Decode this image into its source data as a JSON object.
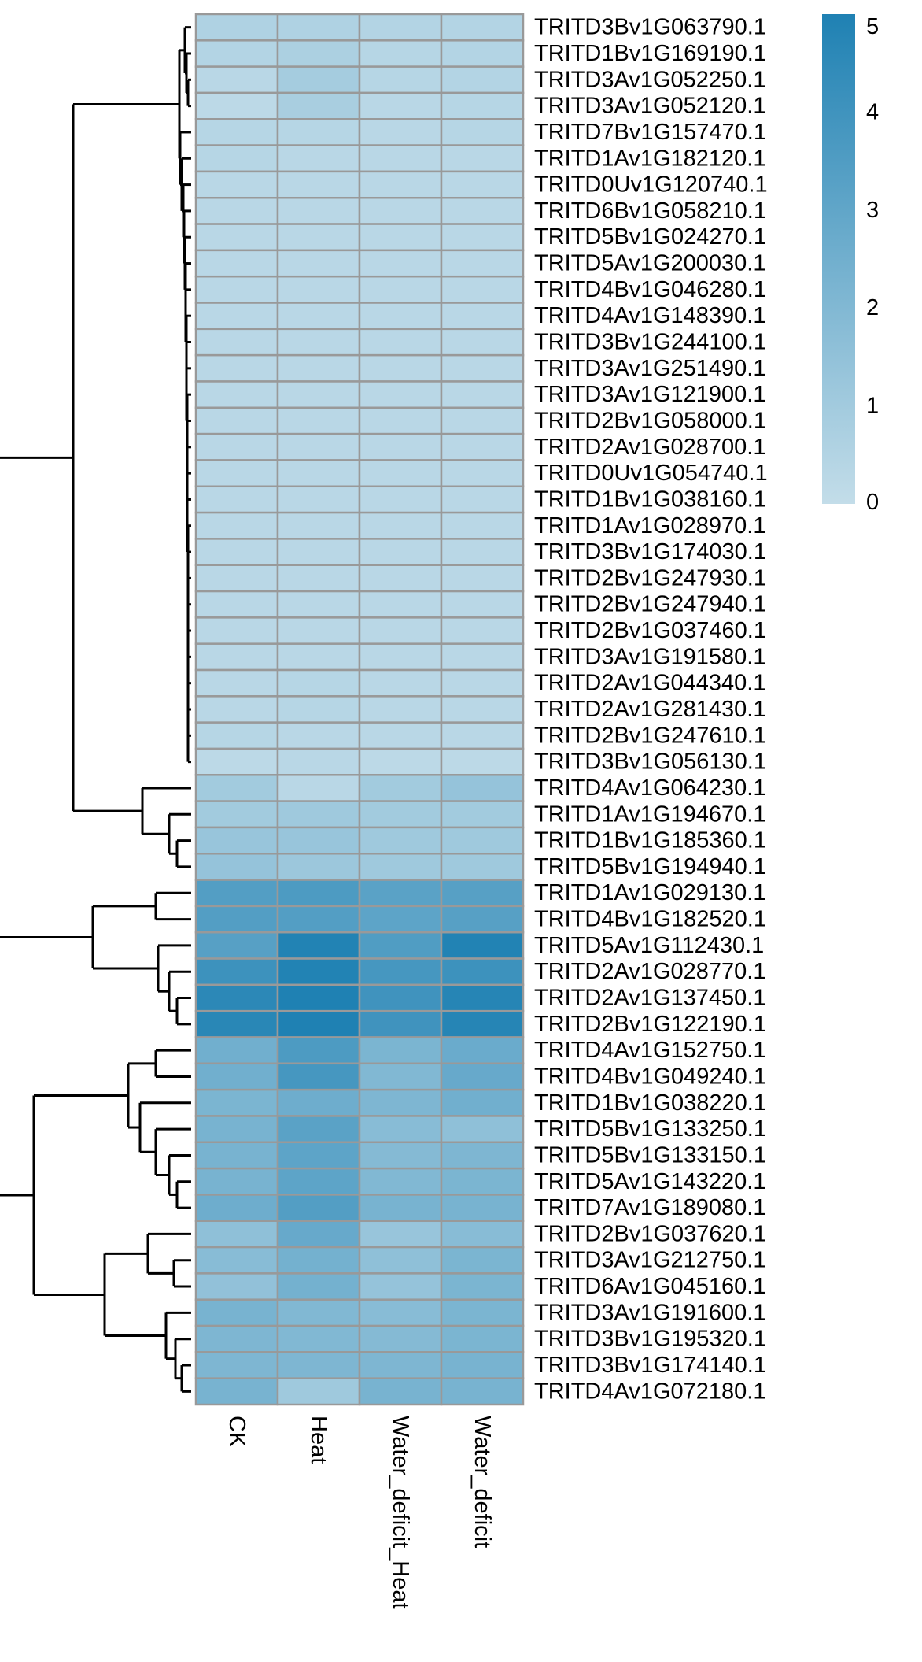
{
  "chart_data": {
    "type": "heatmap",
    "columns": [
      "CK",
      "Heat",
      "Water_deficit_Heat",
      "Water_deficit"
    ],
    "rows": [
      "TRITD3Bv1G063790.1",
      "TRITD1Bv1G169190.1",
      "TRITD3Av1G052250.1",
      "TRITD3Av1G052120.1",
      "TRITD7Bv1G157470.1",
      "TRITD1Av1G182120.1",
      "TRITD0Uv1G120740.1",
      "TRITD6Bv1G058210.1",
      "TRITD5Bv1G024270.1",
      "TRITD5Av1G200030.1",
      "TRITD4Bv1G046280.1",
      "TRITD4Av1G148390.1",
      "TRITD3Bv1G244100.1",
      "TRITD3Av1G251490.1",
      "TRITD3Av1G121900.1",
      "TRITD2Bv1G058000.1",
      "TRITD2Av1G028700.1",
      "TRITD0Uv1G054740.1",
      "TRITD1Bv1G038160.1",
      "TRITD1Av1G028970.1",
      "TRITD3Bv1G174030.1",
      "TRITD2Bv1G247930.1",
      "TRITD2Bv1G247940.1",
      "TRITD2Bv1G037460.1",
      "TRITD3Av1G191580.1",
      "TRITD2Av1G044340.1",
      "TRITD2Av1G281430.1",
      "TRITD2Bv1G247610.1",
      "TRITD3Bv1G056130.1",
      "TRITD4Av1G064230.1",
      "TRITD1Av1G194670.1",
      "TRITD1Bv1G185360.1",
      "TRITD5Bv1G194940.1",
      "TRITD1Av1G029130.1",
      "TRITD4Bv1G182520.1",
      "TRITD5Av1G112430.1",
      "TRITD2Av1G028770.1",
      "TRITD2Av1G137450.1",
      "TRITD2Bv1G122190.1",
      "TRITD4Av1G152750.1",
      "TRITD4Bv1G049240.1",
      "TRITD1Bv1G038220.1",
      "TRITD5Bv1G133250.1",
      "TRITD5Bv1G133150.1",
      "TRITD5Av1G143220.1",
      "TRITD7Av1G189080.1",
      "TRITD2Bv1G037620.1",
      "TRITD3Av1G212750.1",
      "TRITD6Av1G045160.1",
      "TRITD3Av1G191600.1",
      "TRITD3Bv1G195320.1",
      "TRITD3Bv1G174140.1",
      "TRITD4Av1G072180.1"
    ],
    "values": [
      [
        0.6,
        0.6,
        0.5,
        0.5
      ],
      [
        0.5,
        0.7,
        0.4,
        0.5
      ],
      [
        0.3,
        0.9,
        0.4,
        0.5
      ],
      [
        0.2,
        0.8,
        0.3,
        0.4
      ],
      [
        0.4,
        0.4,
        0.3,
        0.4
      ],
      [
        0.4,
        0.3,
        0.3,
        0.3
      ],
      [
        0.3,
        0.3,
        0.3,
        0.3
      ],
      [
        0.3,
        0.3,
        0.3,
        0.3
      ],
      [
        0.3,
        0.3,
        0.3,
        0.3
      ],
      [
        0.3,
        0.3,
        0.3,
        0.3
      ],
      [
        0.3,
        0.3,
        0.3,
        0.3
      ],
      [
        0.3,
        0.3,
        0.3,
        0.3
      ],
      [
        0.3,
        0.3,
        0.3,
        0.3
      ],
      [
        0.3,
        0.3,
        0.3,
        0.3
      ],
      [
        0.3,
        0.3,
        0.3,
        0.3
      ],
      [
        0.3,
        0.3,
        0.3,
        0.3
      ],
      [
        0.3,
        0.3,
        0.3,
        0.3
      ],
      [
        0.3,
        0.3,
        0.3,
        0.3
      ],
      [
        0.3,
        0.3,
        0.3,
        0.3
      ],
      [
        0.3,
        0.3,
        0.3,
        0.3
      ],
      [
        0.3,
        0.3,
        0.3,
        0.3
      ],
      [
        0.3,
        0.3,
        0.3,
        0.3
      ],
      [
        0.3,
        0.3,
        0.3,
        0.3
      ],
      [
        0.3,
        0.3,
        0.3,
        0.3
      ],
      [
        0.3,
        0.3,
        0.3,
        0.3
      ],
      [
        0.3,
        0.4,
        0.3,
        0.3
      ],
      [
        0.3,
        0.4,
        0.3,
        0.3
      ],
      [
        0.4,
        0.3,
        0.3,
        0.3
      ],
      [
        0.2,
        0.3,
        0.2,
        0.2
      ],
      [
        1.0,
        0.3,
        1.0,
        1.4
      ],
      [
        1.0,
        1.1,
        1.0,
        1.0
      ],
      [
        1.3,
        1.3,
        1.1,
        1.1
      ],
      [
        1.4,
        1.2,
        1.1,
        1.1
      ],
      [
        3.4,
        3.6,
        3.2,
        3.3
      ],
      [
        3.4,
        3.4,
        3.1,
        3.3
      ],
      [
        3.3,
        4.9,
        3.5,
        4.9
      ],
      [
        4.1,
        4.9,
        3.8,
        4.1
      ],
      [
        4.6,
        5.0,
        4.0,
        4.8
      ],
      [
        4.7,
        5.0,
        4.0,
        4.8
      ],
      [
        2.5,
        3.6,
        2.2,
        2.7
      ],
      [
        2.5,
        3.8,
        2.0,
        2.8
      ],
      [
        2.2,
        2.6,
        2.1,
        2.5
      ],
      [
        2.3,
        3.2,
        1.8,
        1.6
      ],
      [
        2.3,
        3.1,
        1.9,
        2.1
      ],
      [
        2.3,
        3.1,
        2.0,
        2.2
      ],
      [
        2.6,
        3.4,
        2.3,
        2.3
      ],
      [
        1.6,
        2.8,
        1.3,
        1.8
      ],
      [
        1.8,
        2.4,
        1.6,
        2.2
      ],
      [
        1.5,
        2.4,
        1.4,
        2.2
      ],
      [
        2.3,
        2.0,
        1.8,
        2.2
      ],
      [
        2.1,
        2.0,
        1.9,
        2.2
      ],
      [
        2.1,
        2.1,
        2.1,
        2.3
      ],
      [
        2.3,
        1.1,
        2.3,
        2.3
      ]
    ],
    "legend": {
      "min": 0,
      "max": 5,
      "ticks": [
        "0",
        "1",
        "2",
        "3",
        "4",
        "5"
      ],
      "low_color": "#c3dde9",
      "high_color": "#1f81b3"
    },
    "cell_border_color": "#999999",
    "dendrogram_color": "#000000",
    "row_dendrogram": "left",
    "title": "",
    "xlabel": "",
    "ylabel": ""
  }
}
